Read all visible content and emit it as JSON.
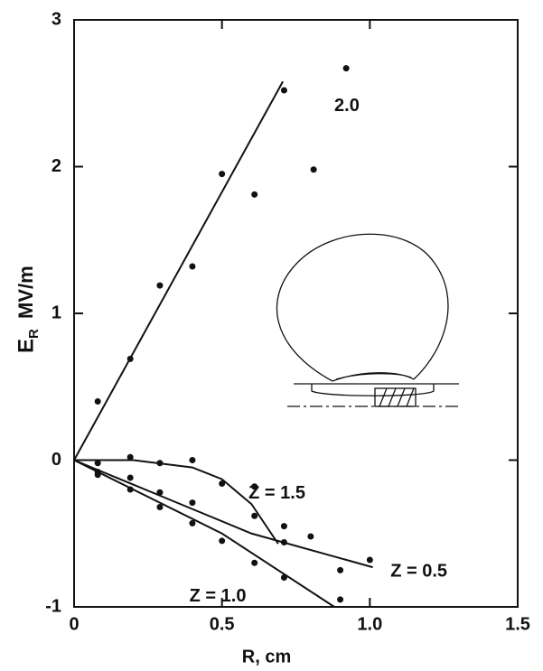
{
  "chart_data": {
    "type": "scatter",
    "xlabel": "R, cm",
    "ylabel": {
      "main": "E",
      "sub": "R",
      "unit": "MV/m"
    },
    "xlim": [
      0,
      1.5
    ],
    "ylim": [
      -1,
      3
    ],
    "xticks": [
      0,
      0.5,
      {
        "value": 1,
        "label": "1.0"
      },
      1.5
    ],
    "yticks": [
      -1,
      0,
      1,
      2,
      3
    ],
    "color": "#111111",
    "series": [
      {
        "name": "2.0",
        "x": [
          0.08,
          0.19,
          0.29,
          0.4,
          0.5,
          0.61,
          0.71,
          0.81,
          0.92
        ],
        "values": [
          0.4,
          0.69,
          1.19,
          1.32,
          1.95,
          1.81,
          2.52,
          1.98,
          2.67
        ],
        "fit": {
          "x": [
            0,
            0.706
          ],
          "y": [
            0,
            2.58
          ]
        }
      },
      {
        "name": "Z = 1.5",
        "x": [
          0.08,
          0.19,
          0.29,
          0.4,
          0.61,
          0.71
        ],
        "values": [
          -0.02,
          0.02,
          -0.02,
          0.0,
          -0.18,
          -0.45
        ],
        "fit": {
          "x": [
            0,
            0.2,
            0.4,
            0.5,
            0.6,
            0.69
          ],
          "y": [
            0,
            0.0,
            -0.05,
            -0.13,
            -0.3,
            -0.57
          ]
        }
      },
      {
        "name": "Z = 0.5",
        "x": [
          0.08,
          0.19,
          0.29,
          0.4,
          0.5,
          0.61,
          0.71,
          0.8,
          0.9,
          1.0
        ],
        "values": [
          -0.08,
          -0.12,
          -0.22,
          -0.29,
          -0.16,
          -0.38,
          -0.56,
          -0.52,
          -0.75,
          -0.68
        ],
        "fit": {
          "x": [
            0,
            0.3,
            0.6,
            1.01
          ],
          "y": [
            0,
            -0.25,
            -0.5,
            -0.73
          ]
        }
      },
      {
        "name": "Z = 1.0",
        "x": [
          0.08,
          0.19,
          0.29,
          0.4,
          0.5,
          0.61,
          0.71,
          0.9
        ],
        "values": [
          -0.1,
          -0.2,
          -0.32,
          -0.43,
          -0.55,
          -0.7,
          -0.8,
          -0.95
        ],
        "fit": {
          "x": [
            0,
            0.5,
            0.88
          ],
          "y": [
            0,
            -0.5,
            -1.0
          ]
        }
      }
    ]
  }
}
